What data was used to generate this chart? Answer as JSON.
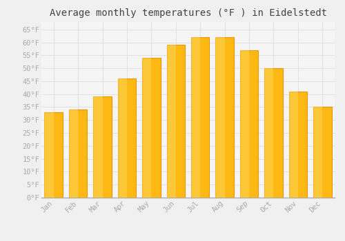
{
  "title": "Average monthly temperatures (°F ) in Eidelstedt",
  "months": [
    "Jan",
    "Feb",
    "Mar",
    "Apr",
    "May",
    "Jun",
    "Jul",
    "Aug",
    "Sep",
    "Oct",
    "Nov",
    "Dec"
  ],
  "values": [
    33,
    34,
    39,
    46,
    54,
    59,
    62,
    62,
    57,
    50,
    41,
    35
  ],
  "bar_color_face": "#FDB813",
  "bar_color_edge": "#E8960A",
  "background_color": "#F0F0F0",
  "plot_bg_color": "#F5F5F5",
  "grid_color": "#DDDDDD",
  "yticks": [
    0,
    5,
    10,
    15,
    20,
    25,
    30,
    35,
    40,
    45,
    50,
    55,
    60,
    65
  ],
  "ytick_labels": [
    "0°F",
    "5°F",
    "10°F",
    "15°F",
    "20°F",
    "25°F",
    "30°F",
    "35°F",
    "40°F",
    "45°F",
    "50°F",
    "55°F",
    "60°F",
    "65°F"
  ],
  "ylim": [
    0,
    68
  ],
  "title_fontsize": 10,
  "tick_fontsize": 7.5,
  "tick_color": "#AAAAAA",
  "title_color": "#444444",
  "font_family": "monospace"
}
